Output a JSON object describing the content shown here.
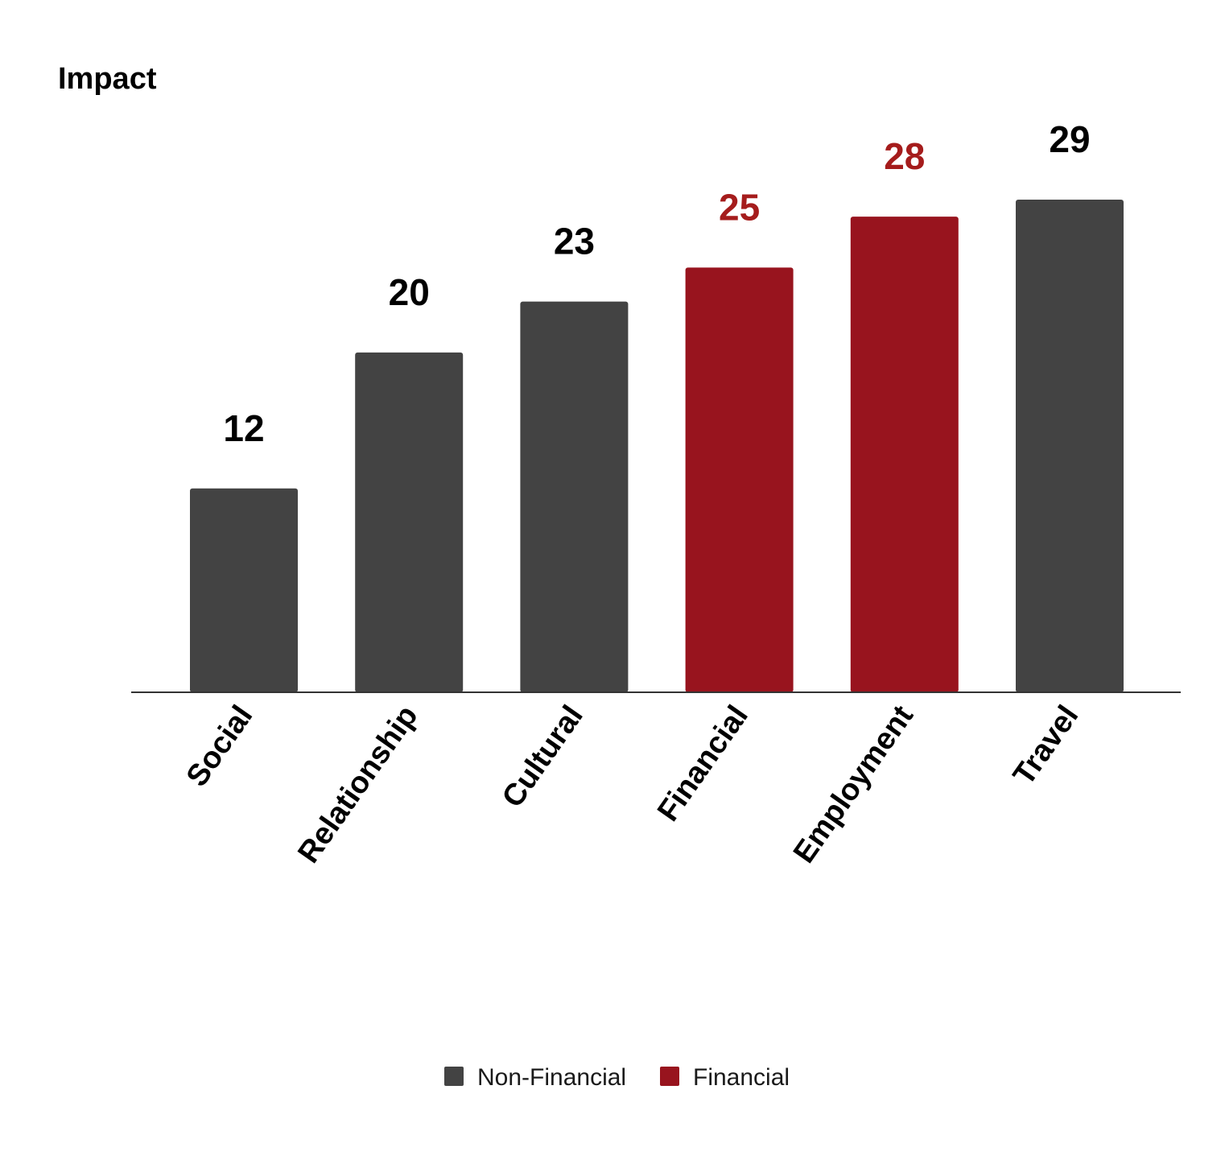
{
  "chart_data": {
    "type": "bar",
    "ylabel": "Impact",
    "categories": [
      "Social",
      "Relationship",
      "Cultural",
      "Financial",
      "Employment",
      "Travel"
    ],
    "values": [
      12,
      20,
      23,
      25,
      28,
      29
    ],
    "groups": [
      "Non-Financial",
      "Non-Financial",
      "Non-Financial",
      "Financial",
      "Financial",
      "Non-Financial"
    ],
    "ylim": [
      0,
      30
    ],
    "grid": false,
    "legend": {
      "position": "bottom",
      "entries": [
        {
          "name": "Non-Financial",
          "color": "#434343"
        },
        {
          "name": "Financial",
          "color": "#98141e"
        }
      ]
    },
    "colors": {
      "Non-Financial": "#434343",
      "Financial": "#98141e",
      "label_Non-Financial": "#000000",
      "label_Financial": "#a51c1c"
    }
  }
}
